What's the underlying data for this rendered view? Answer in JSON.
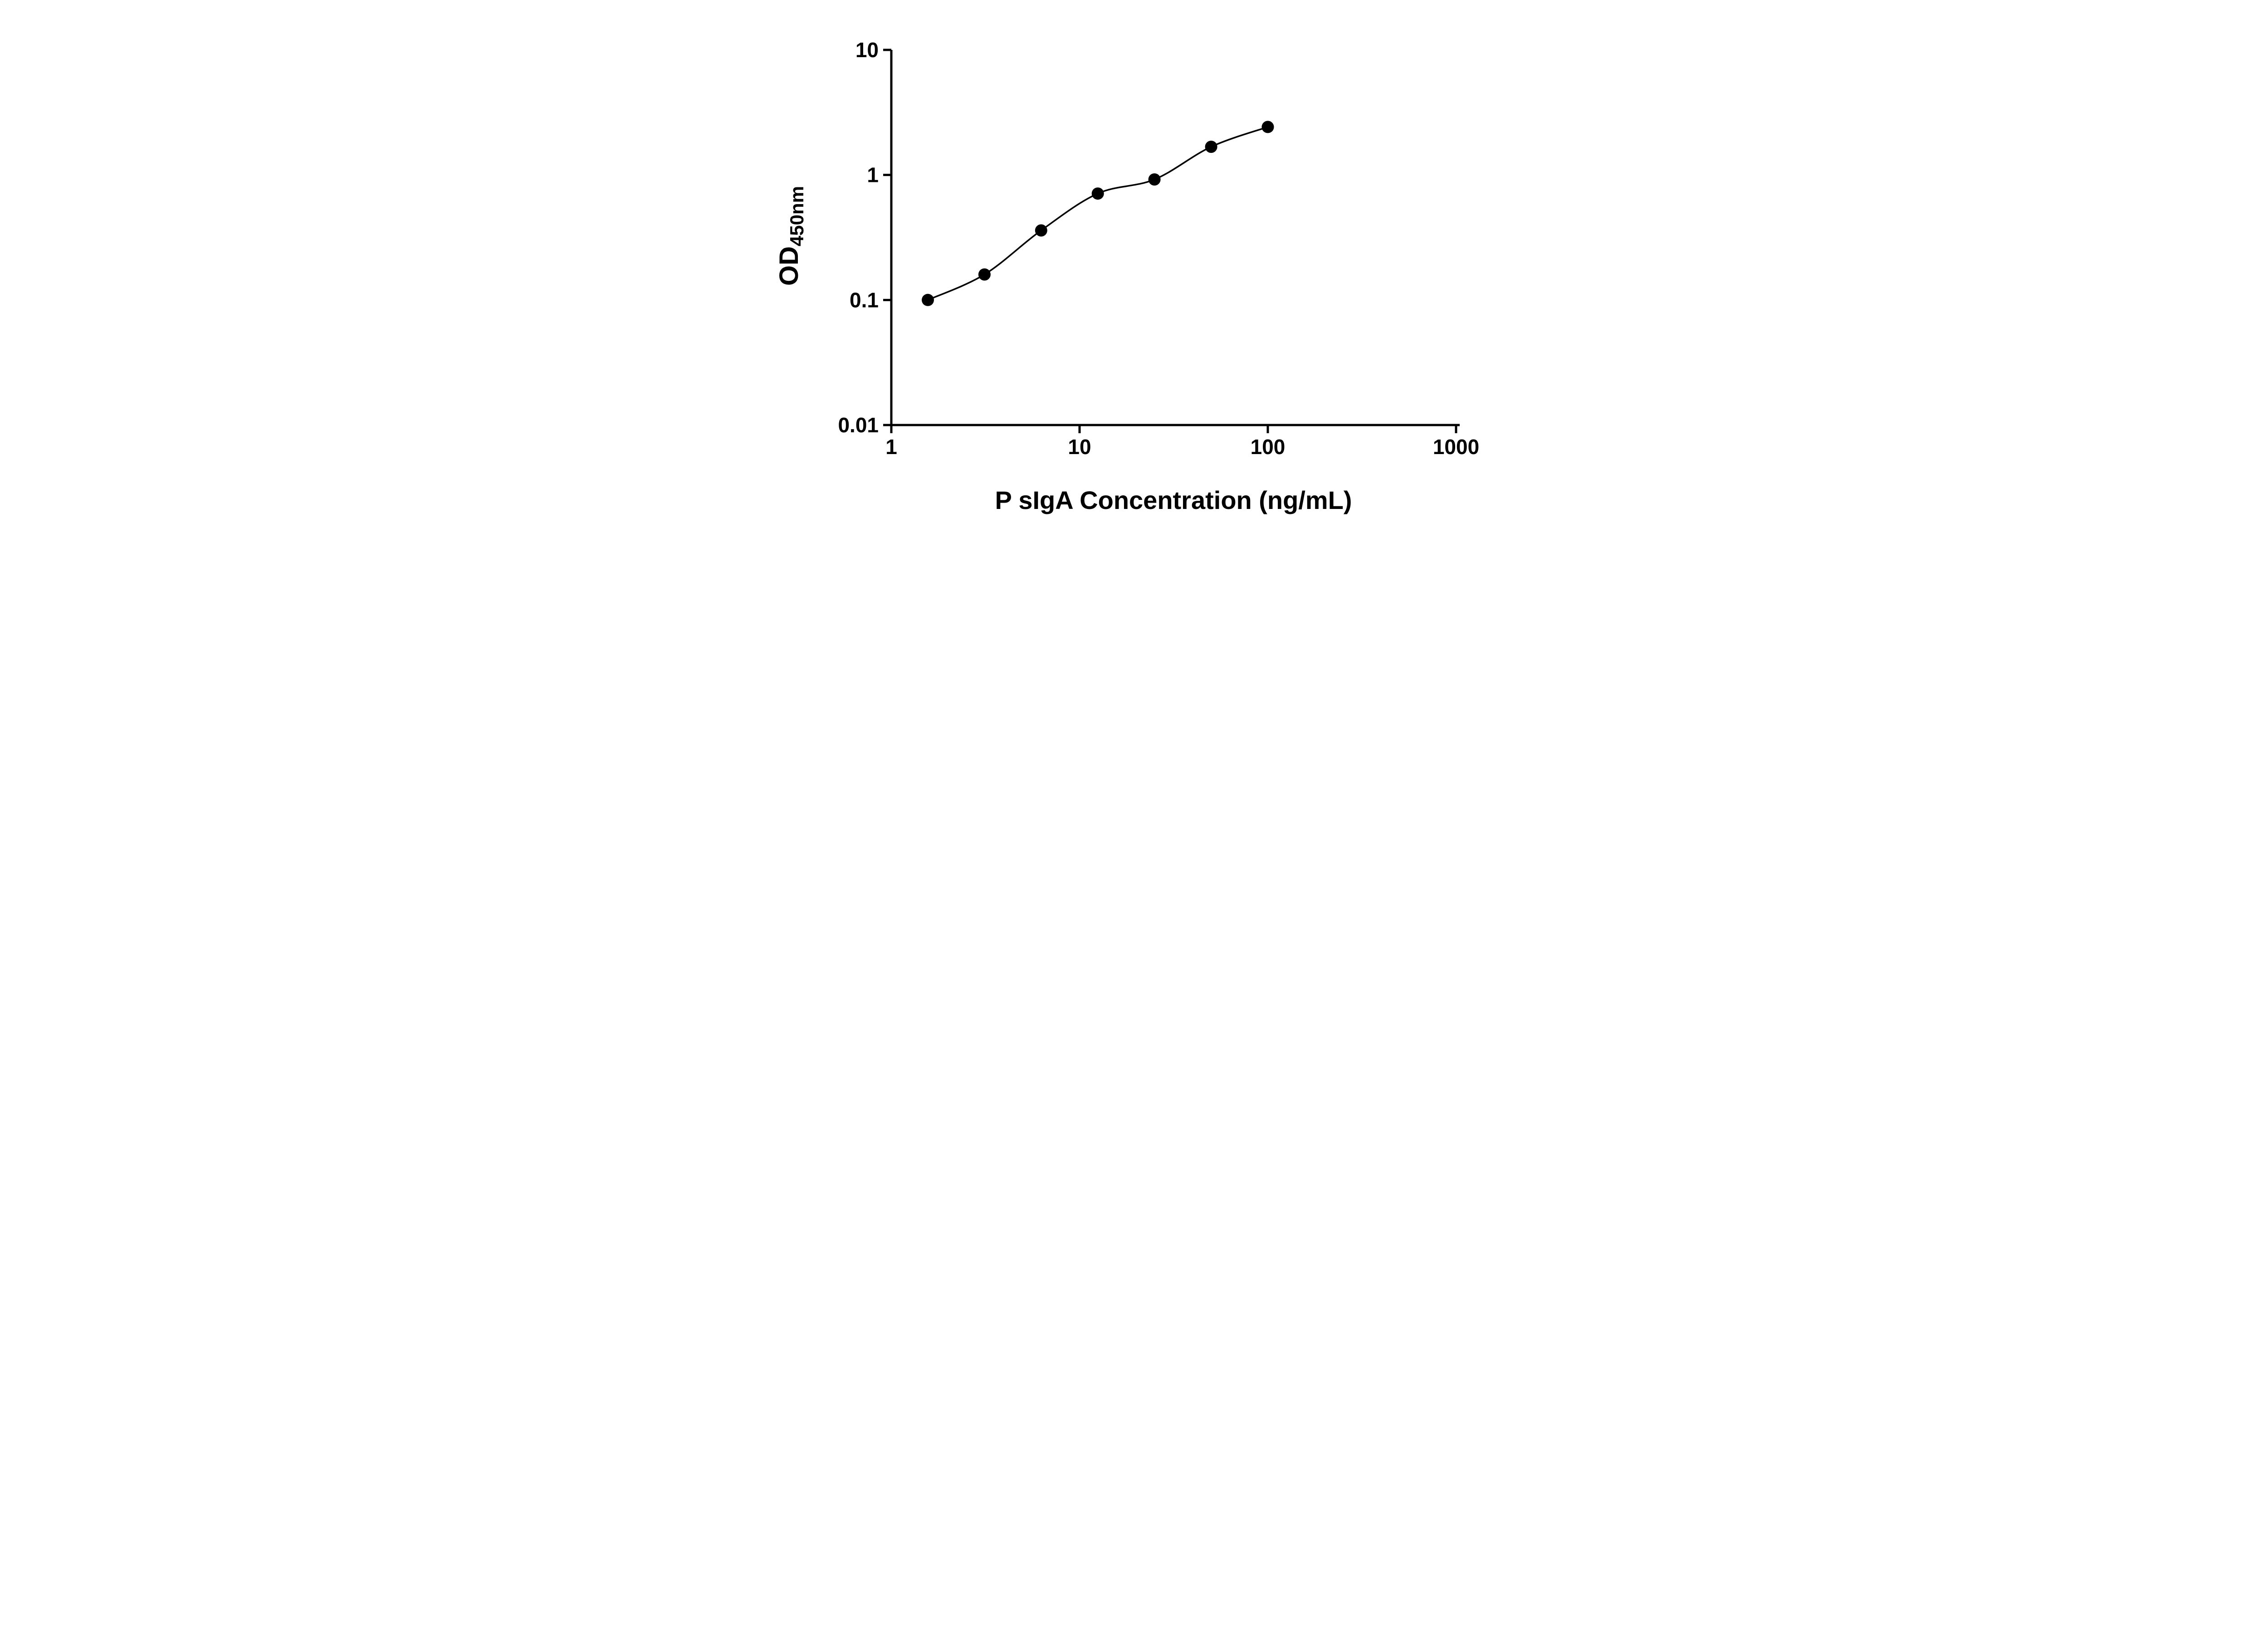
{
  "figure": {
    "background": "#ffffff"
  },
  "chart_data": {
    "type": "scatter",
    "title": "",
    "xlabel": "P sIgA Concentration (ng/mL)",
    "ylabel_main": "OD",
    "ylabel_sub": "450nm",
    "xscale": "log",
    "yscale": "log",
    "xlim": [
      1,
      1000
    ],
    "ylim": [
      0.01,
      10
    ],
    "x": [
      1.563,
      3.125,
      6.25,
      12.5,
      25,
      50,
      100
    ],
    "y": [
      0.1,
      0.16,
      0.36,
      0.71,
      0.92,
      1.68,
      2.42
    ],
    "x_tick_values": [
      1,
      10,
      100,
      1000
    ],
    "x_tick_labels": [
      "1",
      "10",
      "100",
      "1000"
    ],
    "y_tick_values": [
      0.01,
      0.1,
      1,
      10
    ],
    "y_tick_labels": [
      "0.01",
      "0.1",
      "1",
      "10"
    ],
    "legend": [],
    "grid": false,
    "marker_color": "#000000",
    "line_color": "#000000",
    "marker_shape": "circle",
    "curve_type": "smooth-fit"
  }
}
